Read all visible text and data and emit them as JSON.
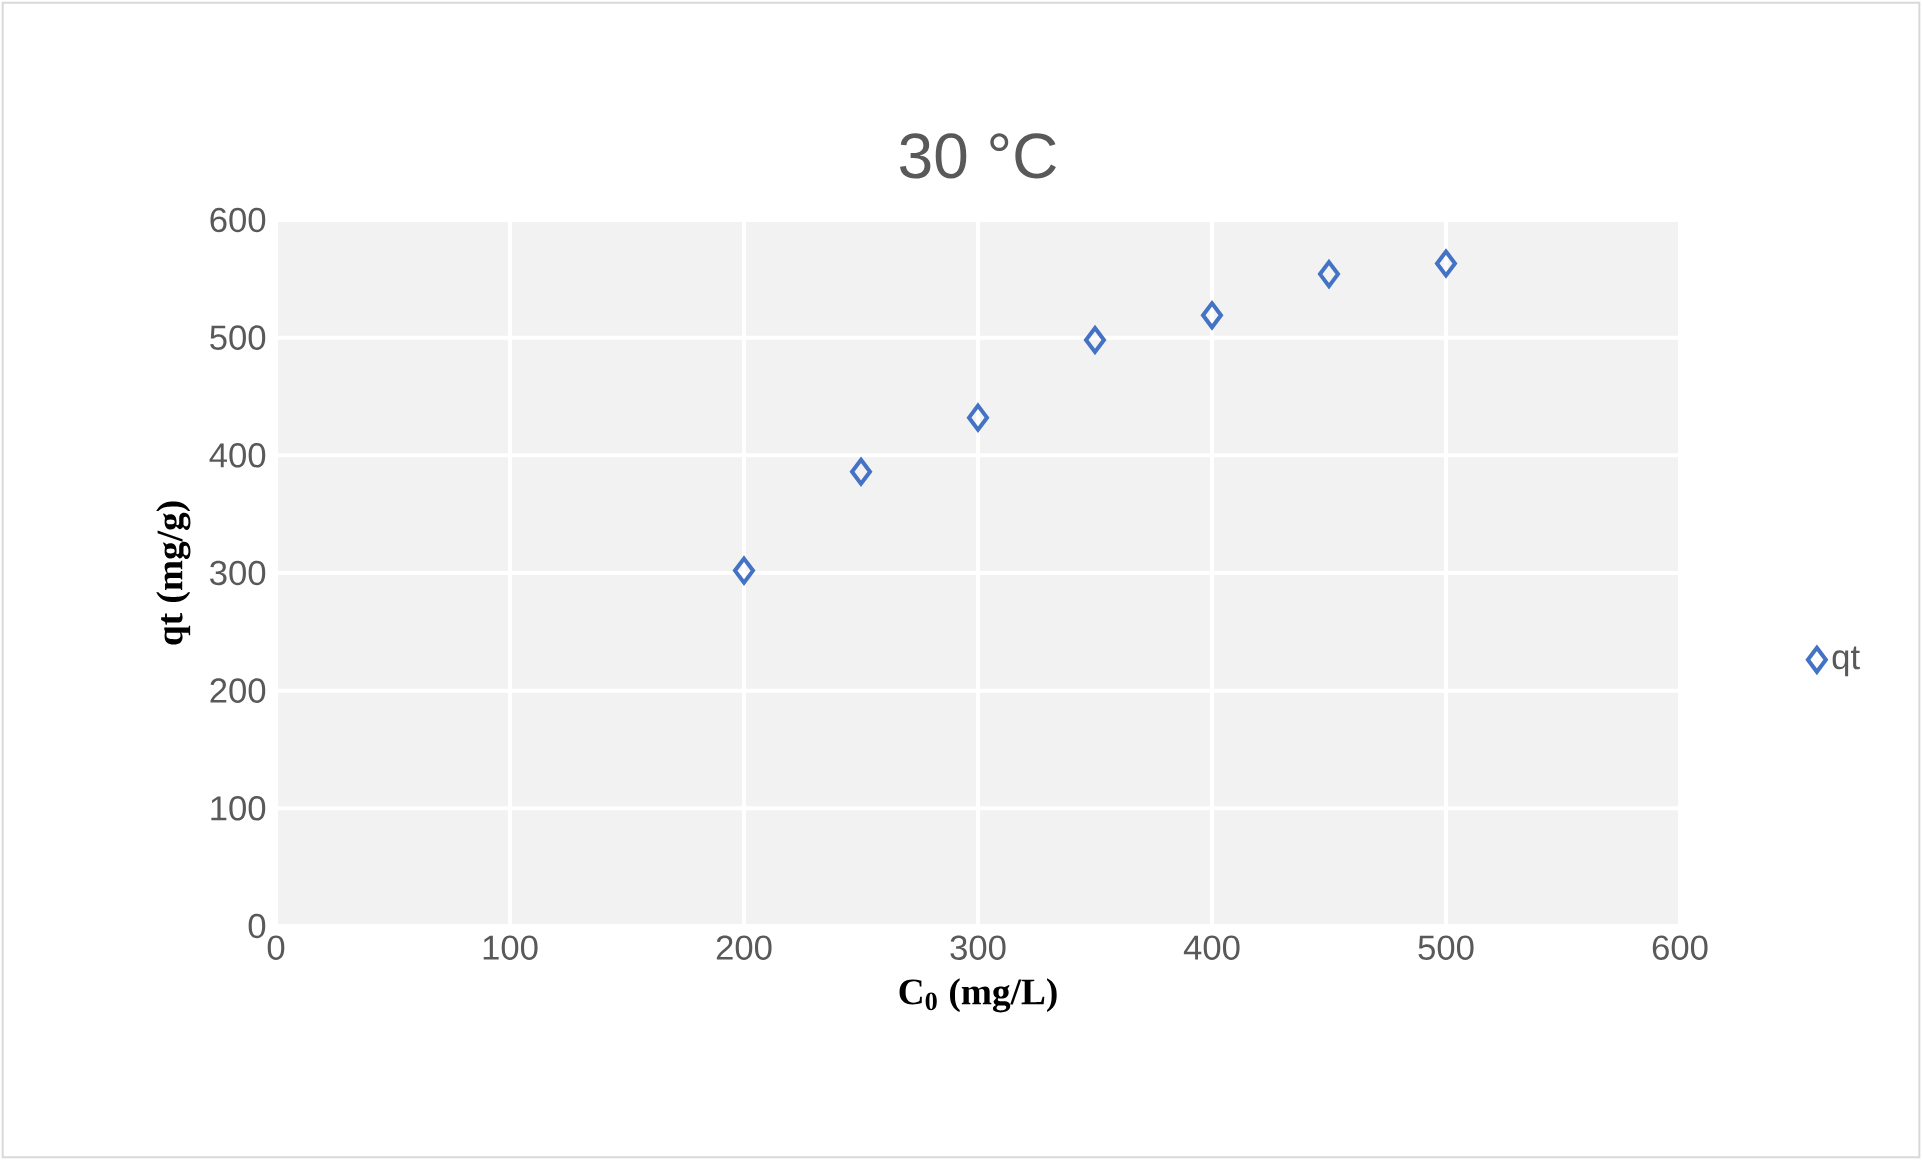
{
  "chart_data": {
    "type": "scatter",
    "title": "30 °C",
    "xlabel": "C$_{0}$ (mg/L)",
    "ylabel": "qt (mg/g)",
    "series": [
      {
        "name": "qt",
        "color": "#4472c4",
        "x": [
          200,
          250,
          300,
          350,
          400,
          450,
          500
        ],
        "values": [
          302,
          386,
          432,
          498,
          519,
          554,
          563
        ]
      }
    ],
    "xlim": [
      0,
      600
    ],
    "xticks": [
      0,
      100,
      200,
      300,
      400,
      500,
      600
    ],
    "ylim": [
      0,
      600
    ],
    "yticks": [
      0,
      100,
      200,
      300,
      400,
      500,
      600
    ],
    "grid": true,
    "legend": "right",
    "marker": "diamond"
  }
}
